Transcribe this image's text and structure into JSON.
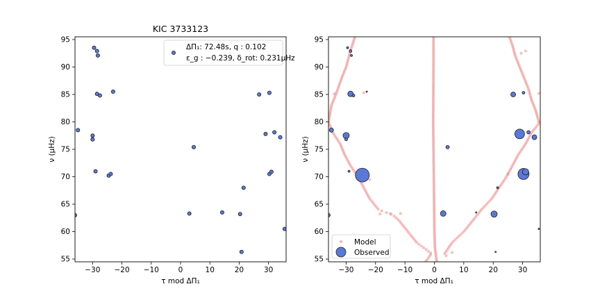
{
  "chart_data": [
    {
      "type": "scatter",
      "title": "KIC 3733123",
      "xlabel": "τ mod ΔΠ₁",
      "ylabel": "ν (μHz)",
      "xlim": [
        -36,
        36
      ],
      "ylim": [
        54.5,
        95.5
      ],
      "xticks": [
        -30,
        -20,
        -10,
        0,
        10,
        20,
        30
      ],
      "yticks": [
        55,
        60,
        65,
        70,
        75,
        80,
        85,
        90,
        95
      ],
      "xtick_labels": [
        "−30",
        "−20",
        "−10",
        "0",
        "10",
        "20",
        "30"
      ],
      "ytick_labels": [
        "55",
        "60",
        "65",
        "70",
        "75",
        "80",
        "85",
        "90",
        "95"
      ],
      "grid": false,
      "legend_text": {
        "line1": "ΔΠ₁: 72.48s, q : 0.102",
        "line2": "ε_g : −0.239, δ_rot: 0.231μHz"
      },
      "legend_placement": "top-right",
      "marker_color": "#5a78d8",
      "points": [
        {
          "x": -29.5,
          "y": 93.5
        },
        {
          "x": -28.5,
          "y": 92.9
        },
        {
          "x": -28.2,
          "y": 92.1
        },
        {
          "x": -2.0,
          "y": 92.2
        },
        {
          "x": -23.0,
          "y": 85.5
        },
        {
          "x": -28.5,
          "y": 85.1
        },
        {
          "x": -27.5,
          "y": 84.8
        },
        {
          "x": 26.8,
          "y": 85.0
        },
        {
          "x": 30.3,
          "y": 85.3
        },
        {
          "x": -35.0,
          "y": 78.5
        },
        {
          "x": -30.0,
          "y": 77.5
        },
        {
          "x": -30.0,
          "y": 76.8
        },
        {
          "x": 29.0,
          "y": 77.8
        },
        {
          "x": 32.0,
          "y": 78.1
        },
        {
          "x": 34.0,
          "y": 77.2
        },
        {
          "x": 4.5,
          "y": 75.4
        },
        {
          "x": -29.0,
          "y": 71.0
        },
        {
          "x": -24.5,
          "y": 70.2
        },
        {
          "x": -23.8,
          "y": 70.5
        },
        {
          "x": 30.3,
          "y": 70.5
        },
        {
          "x": 31.0,
          "y": 70.9
        },
        {
          "x": 21.5,
          "y": 68.0
        },
        {
          "x": 3.0,
          "y": 63.3
        },
        {
          "x": 14.2,
          "y": 63.5
        },
        {
          "x": 20.3,
          "y": 63.2
        },
        {
          "x": -36.0,
          "y": 63.0
        },
        {
          "x": 35.5,
          "y": 60.5
        },
        {
          "x": 20.8,
          "y": 56.3
        }
      ]
    },
    {
      "type": "scatter",
      "title": "",
      "xlabel": "τ mod ΔΠ₁",
      "ylabel": "ν (μHz)",
      "xlim": [
        -36,
        36
      ],
      "ylim": [
        54.5,
        95.5
      ],
      "xticks": [
        -30,
        -20,
        -10,
        0,
        10,
        20,
        30
      ],
      "yticks": [
        55,
        60,
        65,
        70,
        75,
        80,
        85,
        90,
        95
      ],
      "xtick_labels": [
        "−30",
        "−20",
        "−10",
        "0",
        "10",
        "20",
        "30"
      ],
      "ytick_labels": [
        "55",
        "60",
        "65",
        "70",
        "75",
        "80",
        "85",
        "90",
        "95"
      ],
      "grid": false,
      "legend": [
        "Model",
        "Observed"
      ],
      "legend_placement": "lower-left",
      "model_color": "#f08a8a",
      "observed_color": "#5a78d8",
      "series": [
        {
          "name": "Model",
          "ridges": [
            {
              "nu_start": 54.5,
              "nu_end": 95.5,
              "x_at": [
                [
                  54.5,
                  0.8
                ],
                [
                  57,
                  0.2
                ],
                [
                  60,
                  0.0
                ],
                [
                  70,
                  -0.2
                ],
                [
                  80,
                  -0.4
                ],
                [
                  90,
                  -0.3
                ],
                [
                  95.5,
                  -0.3
                ]
              ]
            },
            {
              "nu_start": 54.5,
              "nu_end": 95.5,
              "x_at": [
                [
                  54.5,
                  -3.0
                ],
                [
                  56,
                  -1.0
                ],
                [
                  58,
                  -6.0
                ],
                [
                  60,
                  -9.0
                ],
                [
                  62,
                  -12.0
                ],
                [
                  63,
                  -14.0
                ],
                [
                  64,
                  -19.0
                ],
                [
                  66,
                  -22.0
                ],
                [
                  68,
                  -24.0
                ],
                [
                  70,
                  -26.0
                ],
                [
                  72,
                  -28.5
                ],
                [
                  74,
                  -30.5
                ],
                [
                  76,
                  -32.0
                ],
                [
                  78,
                  -34.5
                ],
                [
                  80,
                  -36.0
                ]
              ]
            },
            {
              "nu_start": 80,
              "nu_end": 95.5,
              "x_at": [
                [
                  80,
                  -36.0
                ],
                [
                  83,
                  -35.0
                ],
                [
                  85,
                  -33.5
                ],
                [
                  88,
                  -31.5
                ],
                [
                  90,
                  -30.0
                ],
                [
                  93,
                  -28.5
                ],
                [
                  95.5,
                  -27.0
                ]
              ]
            },
            {
              "nu_start": 54.5,
              "nu_end": 95.5,
              "x_at": [
                [
                  56,
                  3.5
                ],
                [
                  58,
                  6.0
                ],
                [
                  60,
                  10.0
                ],
                [
                  62,
                  13.0
                ],
                [
                  64,
                  16.0
                ],
                [
                  66,
                  19.5
                ],
                [
                  68,
                  22.0
                ],
                [
                  70,
                  24.5
                ],
                [
                  72,
                  26.5
                ],
                [
                  74,
                  28.5
                ],
                [
                  76,
                  31.0
                ],
                [
                  78,
                  33.0
                ],
                [
                  80,
                  36.0
                ]
              ]
            },
            {
              "nu_start": 80,
              "nu_end": 95.5,
              "x_at": [
                [
                  80,
                  35.5
                ],
                [
                  82,
                  34.5
                ],
                [
                  84,
                  33.0
                ],
                [
                  86,
                  32.0
                ],
                [
                  88,
                  30.5
                ],
                [
                  90,
                  29.0
                ],
                [
                  92,
                  27.5
                ],
                [
                  94,
                  26.5
                ],
                [
                  95.5,
                  25.5
                ]
              ]
            }
          ],
          "extra_points": [
            {
              "x": -18.5,
              "y": 63.2
            },
            {
              "x": -15.0,
              "y": 63.3
            },
            {
              "x": -11.5,
              "y": 63.3
            },
            {
              "x": -24.0,
              "y": 85.3
            },
            {
              "x": -34.0,
              "y": 85.1
            },
            {
              "x": 35.5,
              "y": 85.2
            },
            {
              "x": 25.0,
              "y": 70.5
            },
            {
              "x": 29.5,
              "y": 92.5
            },
            {
              "x": 31.0,
              "y": 92.9
            },
            {
              "x": -22.0,
              "y": 69.5
            },
            {
              "x": 4.0,
              "y": 55.6
            },
            {
              "x": 6.0,
              "y": 56.2
            }
          ]
        },
        {
          "name": "Observed",
          "points": [
            {
              "x": -29.5,
              "y": 93.5,
              "s": 1.5
            },
            {
              "x": -28.5,
              "y": 92.9,
              "s": 2.0
            },
            {
              "x": -28.2,
              "y": 92.1,
              "s": 1.5
            },
            {
              "x": -28.5,
              "y": 85.1,
              "s": 4.0
            },
            {
              "x": -27.5,
              "y": 84.8,
              "s": 2.0
            },
            {
              "x": -23.0,
              "y": 85.5,
              "s": 1.0
            },
            {
              "x": 26.8,
              "y": 85.0,
              "s": 3.5
            },
            {
              "x": 30.3,
              "y": 85.3,
              "s": 2.0
            },
            {
              "x": -35.0,
              "y": 78.5,
              "s": 3.0
            },
            {
              "x": -30.0,
              "y": 77.5,
              "s": 4.5
            },
            {
              "x": -30.0,
              "y": 76.8,
              "s": 2.0
            },
            {
              "x": 29.0,
              "y": 77.8,
              "s": 7.0
            },
            {
              "x": 32.0,
              "y": 78.1,
              "s": 2.5
            },
            {
              "x": 34.0,
              "y": 77.2,
              "s": 3.5
            },
            {
              "x": 4.5,
              "y": 75.4,
              "s": 2.5
            },
            {
              "x": -29.0,
              "y": 71.0,
              "s": 1.5
            },
            {
              "x": -24.5,
              "y": 70.3,
              "s": 10.0
            },
            {
              "x": 30.3,
              "y": 70.5,
              "s": 8.0
            },
            {
              "x": 31.0,
              "y": 70.9,
              "s": 4.5
            },
            {
              "x": 21.5,
              "y": 68.0,
              "s": 1.5
            },
            {
              "x": 3.0,
              "y": 63.3,
              "s": 4.0
            },
            {
              "x": 14.2,
              "y": 63.5,
              "s": 1.0
            },
            {
              "x": 20.3,
              "y": 63.2,
              "s": 4.5
            },
            {
              "x": -36.0,
              "y": 63.0,
              "s": 2.5
            },
            {
              "x": 35.5,
              "y": 60.5,
              "s": 1.0
            },
            {
              "x": 20.8,
              "y": 56.3,
              "s": 1.0
            }
          ]
        }
      ]
    }
  ]
}
